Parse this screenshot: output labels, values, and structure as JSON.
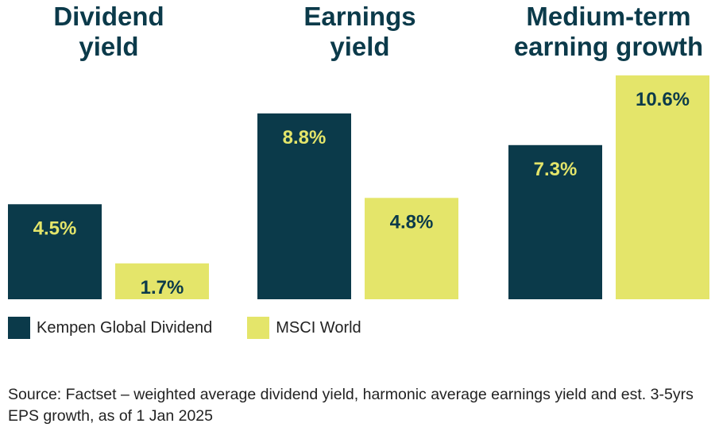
{
  "chart_data": {
    "type": "bar",
    "categories": [
      "Dividend yield",
      "Earnings yield",
      "Medium-term earning growth"
    ],
    "category_titles": [
      [
        "Dividend",
        "yield"
      ],
      [
        "Earnings",
        "yield"
      ],
      [
        "Medium-term",
        "earning growth"
      ]
    ],
    "series": [
      {
        "name": "Kempen Global Dividend",
        "values": [
          4.5,
          8.8,
          7.3
        ],
        "labels": [
          "4.5%",
          "8.8%",
          "7.3%"
        ],
        "color": "#0b3a4a",
        "label_color": "#e4e56a"
      },
      {
        "name": "MSCI World",
        "values": [
          1.7,
          4.8,
          10.6
        ],
        "labels": [
          "1.7%",
          "4.8%",
          "10.6%"
        ],
        "color": "#e4e56a",
        "label_color": "#0b3a4a"
      }
    ],
    "ylim": [
      0,
      10.6
    ],
    "scales": "independent per group",
    "legend": "bottom-left"
  },
  "source_text": "Source: Factset – weighted average dividend yield, harmonic average earnings yield and est. 3-5yrs EPS growth, as of 1 Jan 2025"
}
